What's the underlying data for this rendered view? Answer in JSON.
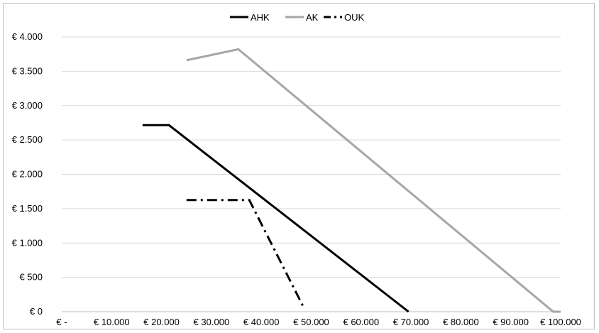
{
  "chart_data": {
    "type": "line",
    "xlabel": "",
    "ylabel": "",
    "xlim": [
      0,
      100000
    ],
    "ylim": [
      0,
      4000
    ],
    "x_ticks": [
      0,
      10000,
      20000,
      30000,
      40000,
      50000,
      60000,
      70000,
      80000,
      90000,
      100000
    ],
    "x_tick_labels": [
      "€ -",
      "€ 10.000",
      "€ 20.000",
      "€ 30.000",
      "€ 40.000",
      "€ 50.000",
      "€ 60.000",
      "€ 70.000",
      "€ 80.000",
      "€ 90.000",
      "€ 100.000"
    ],
    "y_ticks": [
      0,
      500,
      1000,
      1500,
      2000,
      2500,
      3000,
      3500,
      4000
    ],
    "y_tick_labels": [
      "€ 0",
      "€ 500",
      "€ 1.000",
      "€ 1.500",
      "€ 2.000",
      "€ 2.500",
      "€ 3.000",
      "€ 3.500",
      "€ 4.000"
    ],
    "grid": "horizontal",
    "legend_position": "top",
    "series": [
      {
        "name": "AHK",
        "color": "#000000",
        "style": "solid",
        "points": [
          [
            16200,
            2715
          ],
          [
            21500,
            2715
          ],
          [
            69500,
            0
          ]
        ]
      },
      {
        "name": "AK",
        "color": "#a6a6a6",
        "style": "solid",
        "points": [
          [
            25000,
            3660
          ],
          [
            35400,
            3820
          ],
          [
            98500,
            0
          ],
          [
            100000,
            0
          ]
        ]
      },
      {
        "name": "OUK",
        "color": "#000000",
        "style": "dashdot",
        "points": [
          [
            25000,
            1625
          ],
          [
            37600,
            1625
          ],
          [
            48500,
            60
          ]
        ]
      }
    ]
  }
}
